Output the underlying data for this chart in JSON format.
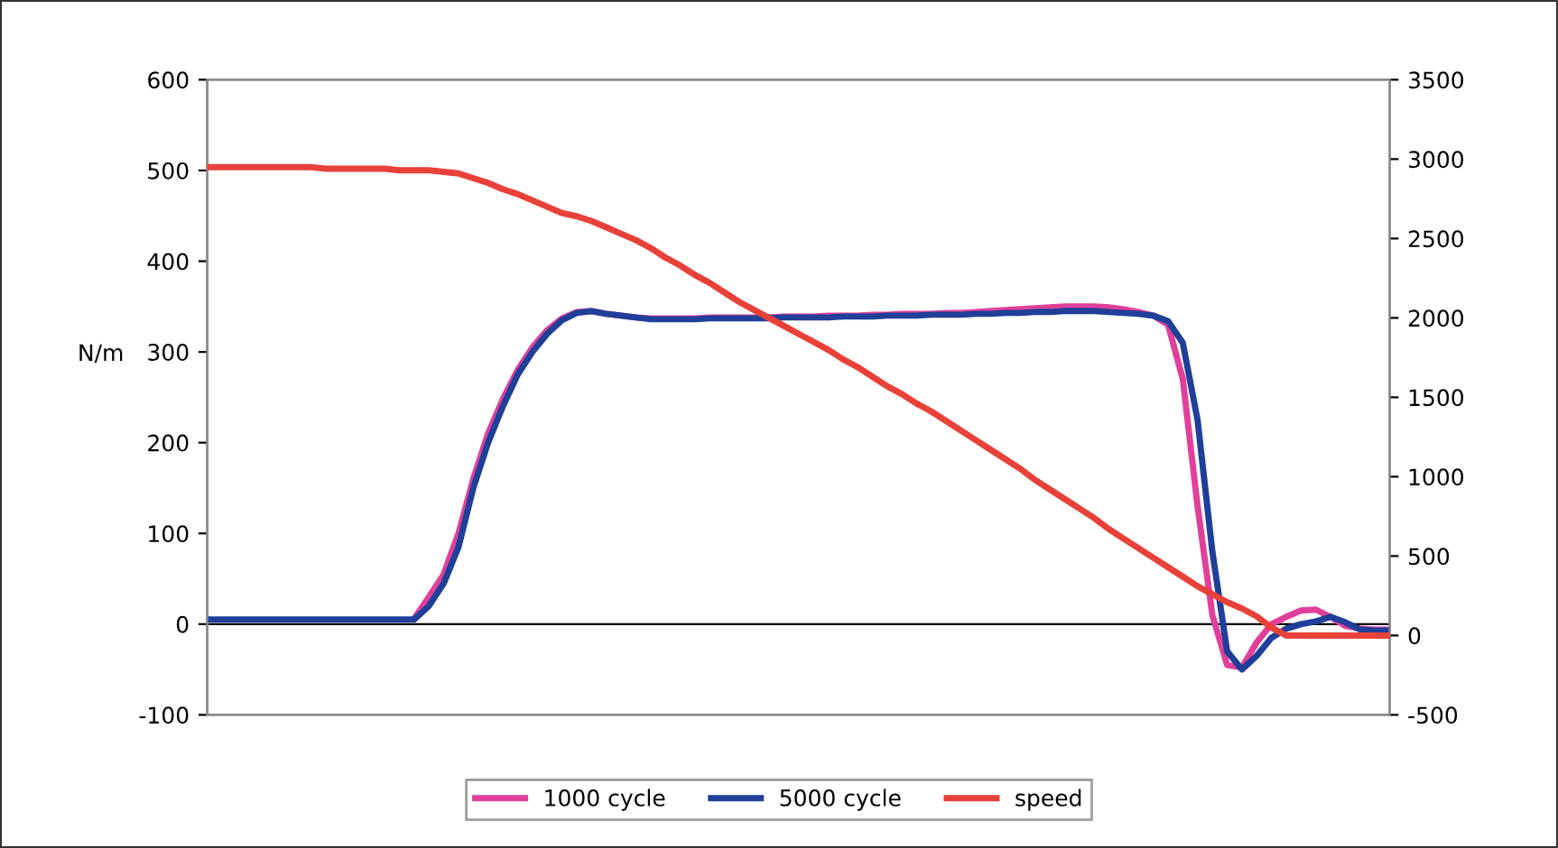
{
  "chart_data": {
    "type": "line",
    "ylabel": "N/m",
    "categories": [
      null,
      null,
      null,
      null,
      null,
      null,
      null,
      null,
      null,
      null,
      null,
      null,
      null,
      null,
      null,
      null,
      null,
      null,
      null,
      null,
      null,
      null,
      null,
      null,
      null,
      null,
      null,
      null,
      null,
      null,
      null,
      null,
      null,
      null,
      null,
      null,
      null,
      null,
      null,
      null,
      null,
      null,
      null,
      null,
      null,
      null,
      null,
      null,
      null,
      null,
      null,
      null,
      null,
      null,
      null,
      null,
      null,
      null,
      null,
      null,
      null,
      null,
      null,
      null,
      null,
      null,
      null,
      null,
      null,
      null,
      null,
      null,
      null,
      null,
      null,
      null,
      null,
      null,
      null,
      null,
      null
    ],
    "series": [
      {
        "name": "1000 cycle",
        "color": "#e0409a",
        "values": [
          null,
          null,
          null,
          null,
          null,
          null,
          null,
          null,
          null,
          null,
          null,
          null,
          null,
          null,
          6,
          30,
          55,
          100,
          160,
          210,
          248,
          280,
          305,
          324,
          337,
          344,
          345,
          342,
          340,
          338,
          337,
          337,
          337,
          337,
          338,
          338,
          338,
          338,
          338,
          339,
          339,
          339,
          340,
          340,
          340,
          341,
          341,
          342,
          342,
          342,
          343,
          343,
          344,
          345,
          346,
          347,
          348,
          349,
          350,
          350,
          350,
          349,
          347,
          344,
          340,
          330,
          270,
          130,
          10,
          -45,
          -48,
          -20,
          0,
          8,
          15,
          16,
          8,
          -2,
          -5,
          -6,
          -6
        ]
      },
      {
        "name": "5000 cycle",
        "color": "#1f3f99",
        "values": [
          5,
          5,
          5,
          5,
          5,
          5,
          5,
          5,
          5,
          5,
          5,
          5,
          5,
          5,
          5,
          20,
          45,
          85,
          150,
          200,
          240,
          275,
          300,
          320,
          335,
          343,
          345,
          342,
          340,
          338,
          336,
          336,
          336,
          336,
          337,
          337,
          337,
          337,
          337,
          338,
          338,
          338,
          338,
          339,
          339,
          339,
          340,
          340,
          340,
          341,
          341,
          341,
          342,
          342,
          343,
          343,
          344,
          344,
          345,
          345,
          345,
          344,
          343,
          342,
          340,
          334,
          310,
          225,
          80,
          -30,
          -50,
          -35,
          -15,
          -5,
          0,
          3,
          8,
          2,
          -6,
          -7,
          -7
        ]
      },
      {
        "name": "speed",
        "color": "#e8413a",
        "axis": "y2",
        "values": [
          2950,
          2950,
          2950,
          2950,
          2950,
          2950,
          2950,
          2950,
          2940,
          2940,
          2940,
          2940,
          2940,
          2930,
          2930,
          2930,
          2920,
          2910,
          2880,
          2850,
          2810,
          2780,
          2740,
          2700,
          2660,
          2640,
          2610,
          2570,
          2530,
          2490,
          2440,
          2380,
          2330,
          2270,
          2220,
          2160,
          2100,
          2050,
          2000,
          1950,
          1900,
          1850,
          1800,
          1740,
          1690,
          1630,
          1570,
          1520,
          1460,
          1410,
          1350,
          1290,
          1230,
          1170,
          1110,
          1050,
          980,
          920,
          860,
          800,
          740,
          670,
          610,
          550,
          490,
          430,
          370,
          310,
          260,
          210,
          170,
          120,
          50,
          0,
          0,
          0,
          0,
          0,
          0,
          0,
          0
        ]
      }
    ],
    "ylim": [
      -100,
      600
    ],
    "yticks": [
      -100,
      0,
      100,
      200,
      300,
      400,
      500,
      600
    ],
    "y2lim": [
      -500,
      3500
    ],
    "y2ticks": [
      -500,
      0,
      500,
      1000,
      1500,
      2000,
      2500,
      3000,
      3500
    ],
    "ref_lines": [
      {
        "axis": "y",
        "value": 0,
        "color": "#000000",
        "line_style": "solid"
      }
    ],
    "grid": false,
    "legend": "bottom",
    "marker": "none",
    "line_style": "solid"
  }
}
